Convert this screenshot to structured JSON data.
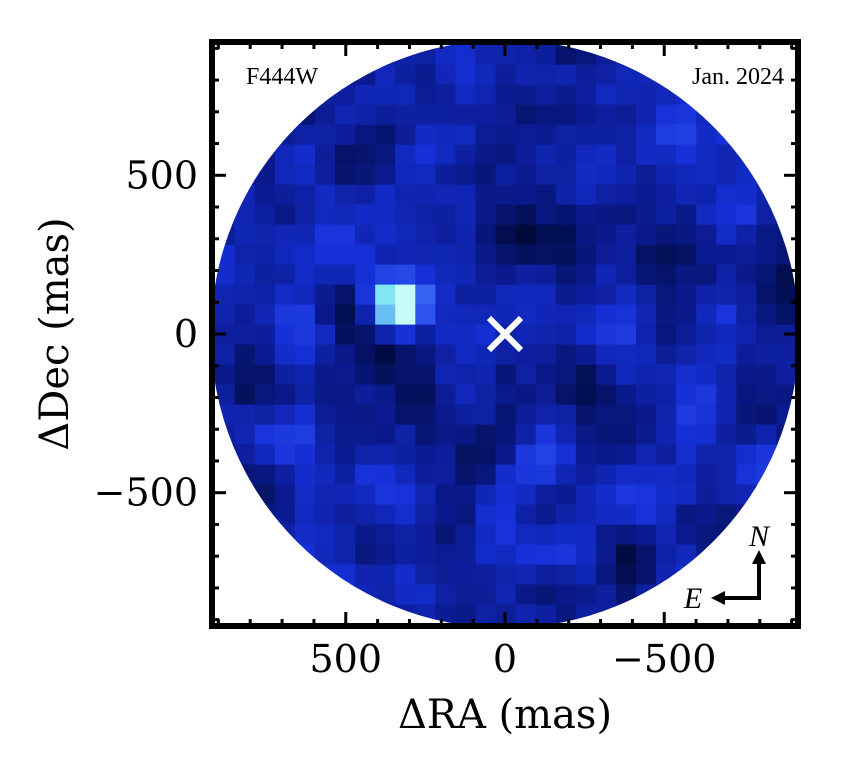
{
  "chart_data": {
    "type": "heatmap",
    "title": "",
    "xlabel": "ΔRA (mas)",
    "ylabel": "ΔDec (mas)",
    "xlim": [
      920,
      -920
    ],
    "ylim": [
      -920,
      920
    ],
    "x_ticks": [
      500,
      0,
      -500
    ],
    "x_tick_labels": [
      "500",
      "0",
      "−500"
    ],
    "y_ticks": [
      500,
      0,
      -500
    ],
    "y_tick_labels": [
      "500",
      "0",
      "−500"
    ],
    "filter_label": "F444W",
    "epoch_label": "Jan. 2024",
    "colormap": [
      "#000a3a",
      "#0a1a8c",
      "#1630d8",
      "#2f56f0",
      "#4a8cf2",
      "#7ce6f4",
      "#c8fbf6"
    ],
    "field_radius_mas": 920,
    "pixel_scale_mas": 63,
    "star_marker": {
      "x": 0,
      "y": 0,
      "symbol": "×",
      "color": "#ffffff"
    },
    "source": {
      "x": 330,
      "y": 95,
      "peak": 1.0
    },
    "compass": {
      "north": "N",
      "east": "E"
    },
    "grid": false
  }
}
